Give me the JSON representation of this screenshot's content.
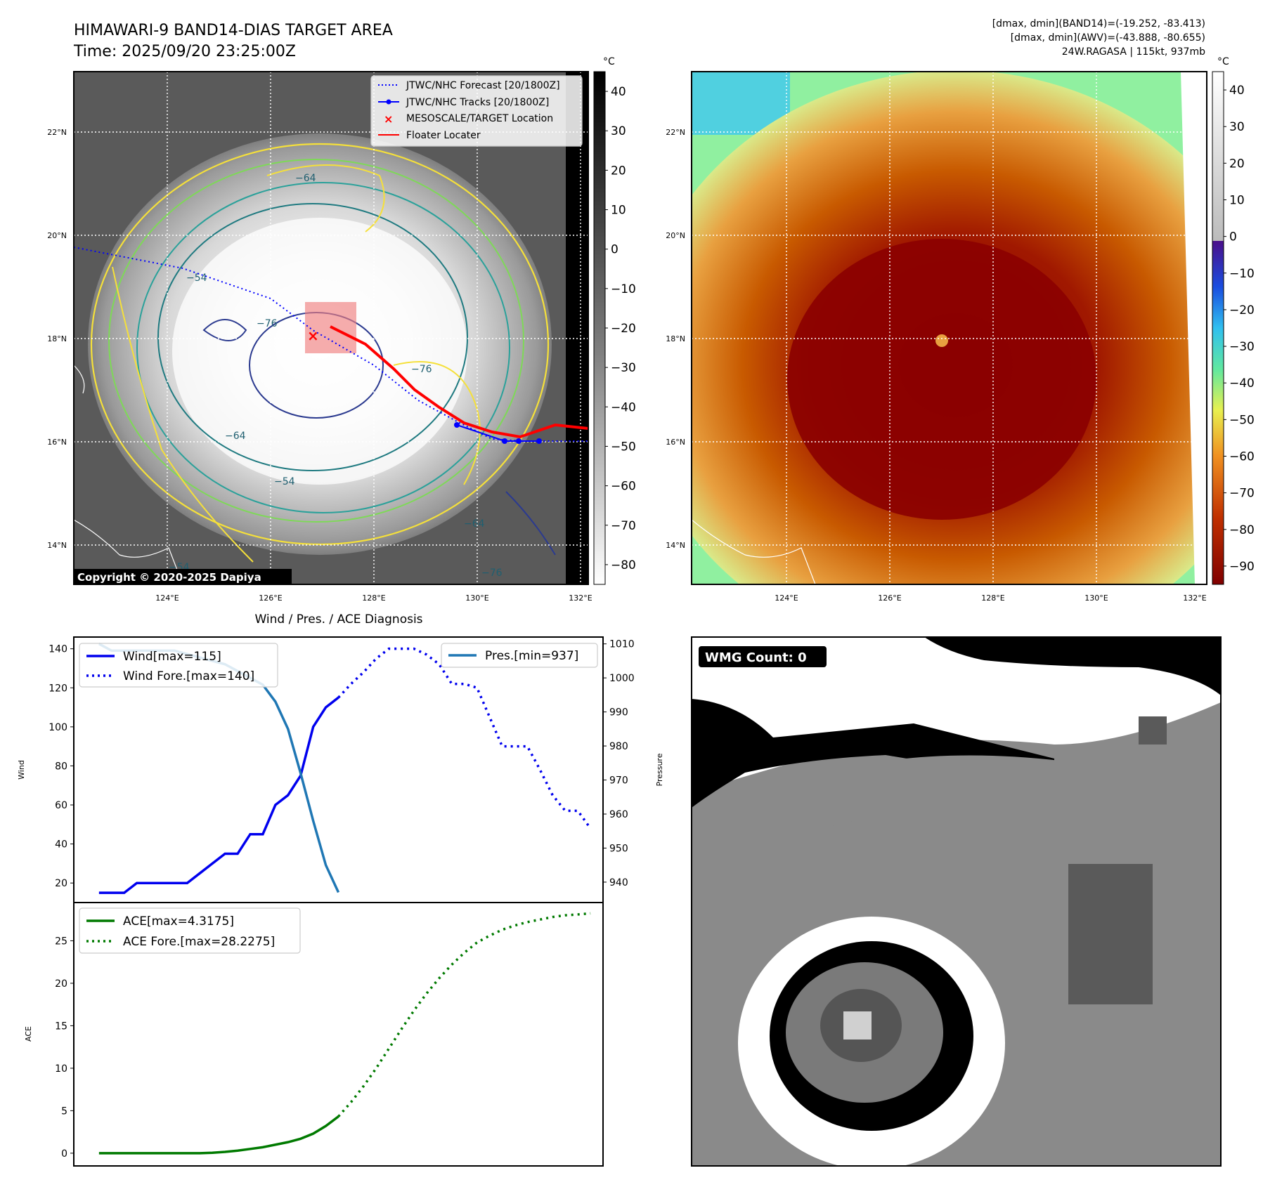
{
  "header": {
    "title_line1": "HIMAWARI-9 BAND14-DIAS TARGET AREA",
    "title_line2": "Time: 2025/09/20 23:25:00Z",
    "info_line1": "[dmax, dmin](BAND14)=(-19.252, -83.413)",
    "info_line2": "[dmax, dmin](AWV)=(-43.888, -80.655)",
    "info_line3": "24W.RAGASA | 115kt, 937mb"
  },
  "map_left": {
    "lat_labels": [
      "22°N",
      "20°N",
      "18°N",
      "16°N",
      "14°N"
    ],
    "lon_labels": [
      "124°E",
      "126°E",
      "128°E",
      "130°E",
      "132°E"
    ],
    "colorbar_unit": "°C",
    "colorbar_ticks": [
      "40",
      "30",
      "20",
      "10",
      "0",
      "−10",
      "−20",
      "−30",
      "−40",
      "−50",
      "−60",
      "−70",
      "−80"
    ],
    "contour_labels": [
      "−64",
      "−76",
      "−76",
      "−64",
      "−54",
      "−54",
      "−64",
      "−76",
      "−54"
    ],
    "legend": {
      "forecast": "JTWC/NHC Forecast [20/1800Z]",
      "tracks": "JTWC/NHC Tracks [20/1800Z]",
      "target": "MESOSCALE/TARGET Location",
      "floater": "Floater Locater"
    },
    "copyright": "Copyright © 2020-2025 Dapiya"
  },
  "map_right": {
    "lat_labels": [
      "22°N",
      "20°N",
      "18°N",
      "16°N",
      "14°N"
    ],
    "lon_labels": [
      "124°E",
      "126°E",
      "128°E",
      "130°E",
      "132°E"
    ],
    "colorbar_unit": "°C",
    "colorbar_ticks": [
      "40",
      "30",
      "20",
      "10",
      "0",
      "−10",
      "−20",
      "−30",
      "−40",
      "−50",
      "−60",
      "−70",
      "−80",
      "−90"
    ]
  },
  "wmg": {
    "label": "WMG Count: 0"
  },
  "colors": {
    "wind": "#0000ee",
    "pressure": "#1f77b4",
    "ace": "#007a00",
    "track_red": "#ff0000",
    "target_box": "#f08080"
  },
  "chart_data": [
    {
      "type": "line",
      "title": "Wind / Pres. / ACE Diagnosis",
      "ylabel": "Wind",
      "y2label": "Pressure",
      "ylim": [
        10,
        146
      ],
      "y2lim": [
        934,
        1012
      ],
      "yticks": [
        20,
        40,
        60,
        80,
        100,
        120,
        140
      ],
      "y2ticks": [
        940,
        950,
        960,
        970,
        980,
        990,
        1000,
        1010
      ],
      "x": [
        0,
        1,
        2,
        3,
        4,
        5,
        6,
        7,
        8,
        9,
        10,
        11,
        12,
        13,
        14,
        15,
        16,
        17,
        18,
        19,
        20,
        21,
        22,
        23,
        24,
        25,
        26,
        27,
        28,
        29,
        30,
        31,
        32,
        33,
        34,
        35,
        36,
        37,
        38,
        39,
        40
      ],
      "xlim": [
        -2,
        40
      ],
      "series": [
        {
          "name": "Wind[max=115]",
          "axis": "left",
          "style": "solid",
          "x": [
            0,
            1,
            2,
            3,
            4,
            5,
            6,
            7,
            8,
            9,
            10,
            11,
            12,
            13,
            14,
            15,
            16,
            17,
            18,
            19
          ],
          "values": [
            15,
            15,
            15,
            20,
            20,
            20,
            20,
            20,
            25,
            30,
            35,
            35,
            45,
            45,
            60,
            65,
            75,
            100,
            110,
            115
          ]
        },
        {
          "name": "Wind Fore.[max=140]",
          "axis": "left",
          "style": "dotted",
          "x": [
            19,
            20,
            21,
            22,
            23,
            24,
            25,
            26,
            27,
            28,
            29,
            30,
            31,
            32,
            33,
            34,
            35,
            36,
            37,
            38,
            39
          ],
          "values": [
            115,
            122,
            128,
            135,
            140,
            140,
            140,
            137,
            132,
            122,
            122,
            120,
            105,
            90,
            90,
            90,
            78,
            65,
            57,
            57,
            48
          ]
        },
        {
          "name": "Pres.[min=937]",
          "axis": "right",
          "style": "solid",
          "x": [
            0,
            1,
            2,
            3,
            4,
            5,
            6,
            7,
            8,
            9,
            10,
            11,
            12,
            13,
            14,
            15,
            16,
            17,
            18,
            19
          ],
          "values": [
            1010,
            1008,
            1008,
            1008,
            1008,
            1008,
            1008,
            1007,
            1006,
            1005,
            1004,
            1002,
            1000,
            998,
            993,
            985,
            972,
            958,
            945,
            937
          ]
        }
      ]
    },
    {
      "type": "line",
      "ylabel": "ACE",
      "ylim": [
        -1.5,
        29.5
      ],
      "yticks": [
        0,
        5,
        10,
        15,
        20,
        25
      ],
      "xlim": [
        -2,
        40
      ],
      "series": [
        {
          "name": "ACE[max=4.3175]",
          "style": "solid",
          "x": [
            0,
            1,
            2,
            3,
            4,
            5,
            6,
            7,
            8,
            9,
            10,
            11,
            12,
            13,
            14,
            15,
            16,
            17,
            18,
            19
          ],
          "values": [
            0,
            0,
            0,
            0,
            0,
            0,
            0,
            0,
            0,
            0.05,
            0.15,
            0.3,
            0.5,
            0.7,
            1.0,
            1.3,
            1.7,
            2.3,
            3.2,
            4.3175
          ]
        },
        {
          "name": "ACE Fore.[max=28.2275]",
          "style": "dotted",
          "x": [
            19,
            20,
            21,
            22,
            23,
            24,
            25,
            26,
            27,
            28,
            29,
            30,
            31,
            32,
            33,
            34,
            35,
            36,
            37,
            38,
            39
          ],
          "values": [
            4.3175,
            6.0,
            7.9,
            10.0,
            12.3,
            14.6,
            16.8,
            18.8,
            20.6,
            22.2,
            23.6,
            24.8,
            25.6,
            26.3,
            26.8,
            27.2,
            27.5,
            27.8,
            28.0,
            28.1,
            28.2275
          ]
        }
      ]
    }
  ]
}
